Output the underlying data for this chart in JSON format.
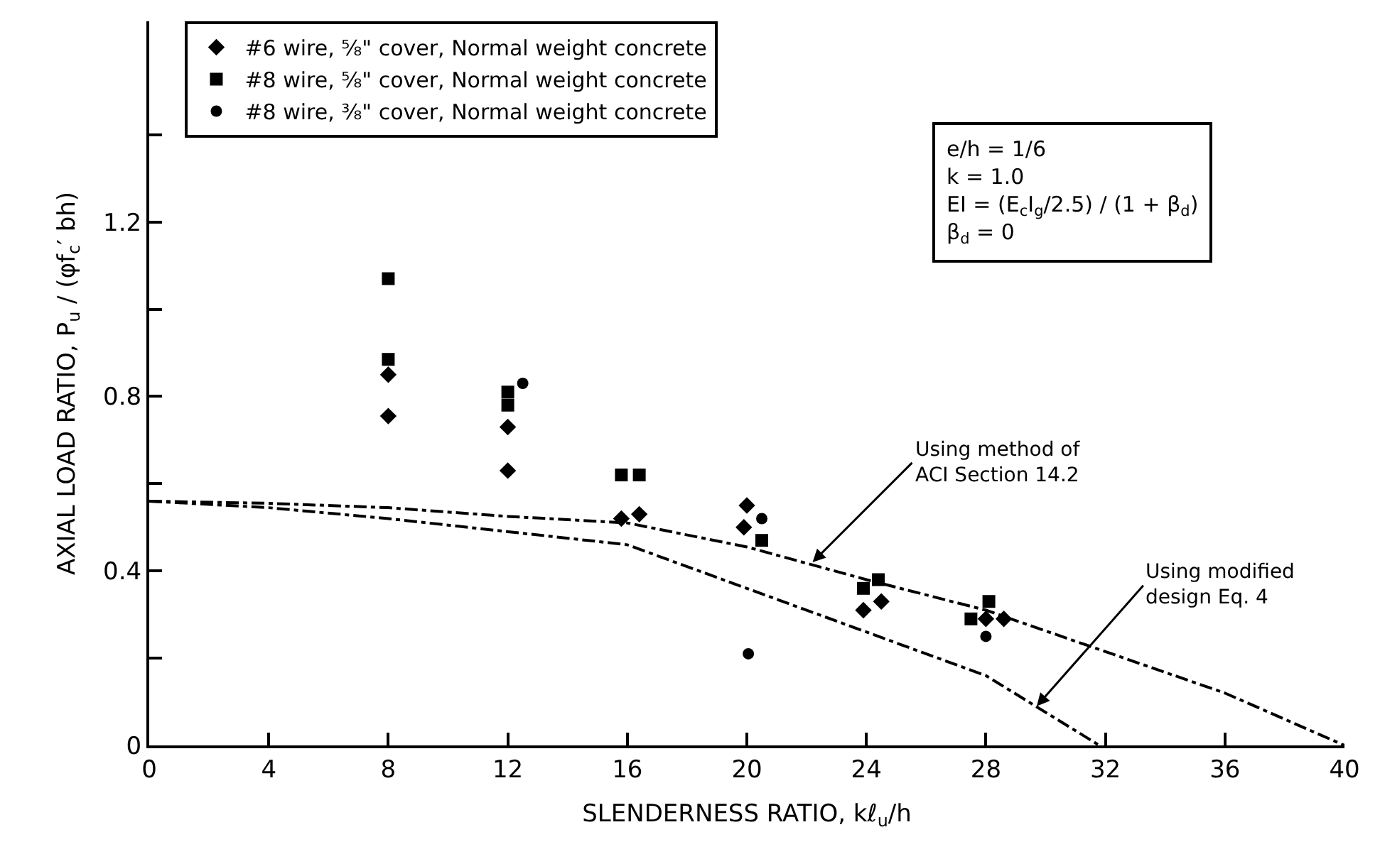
{
  "chart_data": {
    "type": "scatter",
    "xlabel": "SLENDERNESS RATIO, kℓ$_{u}$/h",
    "ylabel": "AXIAL LOAD RATIO, P$_{u}$ / (φf$_{c}$′ bh)",
    "xlim": [
      0,
      40
    ],
    "xticks": [
      0,
      4,
      8,
      12,
      16,
      20,
      24,
      28,
      32,
      36,
      40
    ],
    "ylim": [
      0,
      1.66
    ],
    "yticks": [
      0,
      {
        "value": 0.2,
        "label": null
      },
      0.4,
      {
        "value": 0.6,
        "label": null
      },
      0.8,
      {
        "value": 1.0,
        "label": null
      },
      1.2,
      {
        "value": 1.4,
        "label": null
      }
    ],
    "legend": "top left",
    "series": [
      {
        "name": "#6 wire, ⁵⁄₈\" cover, Normal weight concrete",
        "color": "#000000",
        "marker": "diamond",
        "x": [
          8,
          8,
          12,
          12,
          15.8,
          16.4,
          20,
          19.9,
          23.9,
          24.5,
          28,
          28.6
        ],
        "values": [
          0.85,
          0.755,
          0.73,
          0.63,
          0.52,
          0.53,
          0.55,
          0.5,
          0.31,
          0.33,
          0.29,
          0.29
        ]
      },
      {
        "name": "#8 wire, ⁵⁄₈\" cover, Normal weight concrete",
        "color": "#000000",
        "marker": "square",
        "x": [
          8,
          8,
          12,
          12,
          15.8,
          16.4,
          20.5,
          23.9,
          24.4,
          28.1,
          27.5
        ],
        "values": [
          1.07,
          0.885,
          0.81,
          0.78,
          0.62,
          0.62,
          0.47,
          0.36,
          0.38,
          0.33,
          0.29
        ]
      },
      {
        "name": "#8 wire, ³⁄₈\" cover, Normal weight concrete",
        "color": "#000000",
        "marker": "circle",
        "x": [
          12.5,
          20.5,
          20.05,
          28
        ],
        "values": [
          0.83,
          0.52,
          0.21,
          0.25
        ]
      },
      {
        "type": "line",
        "color": "#000000",
        "marker": "none",
        "line_style": "dashed",
        "x": [
          0,
          4,
          8,
          12,
          16,
          20,
          24,
          28,
          32,
          36,
          40
        ],
        "values": [
          0.56,
          0.555,
          0.545,
          0.525,
          0.51,
          0.455,
          0.38,
          0.31,
          0.215,
          0.12,
          0
        ]
      },
      {
        "type": "line",
        "color": "#000000",
        "marker": "none",
        "line_style": "dashed",
        "x": [
          0,
          4,
          8,
          12,
          16,
          20,
          24,
          28,
          31.8
        ],
        "values": [
          0.56,
          0.545,
          0.52,
          0.49,
          0.46,
          0.36,
          0.26,
          0.16,
          0
        ]
      }
    ],
    "annotations": [
      {
        "text": "Using method of\nACI Section 14.2",
        "x": 22.2,
        "y": 0.42
      },
      {
        "text": "Using modified\ndesign Eq. 4",
        "x": 29.7,
        "y": 0.09
      },
      "e/h = 1/6",
      "k = 1.0",
      "EI = (E$_{c}$I$_{g}$/2.5) / (1 + β$_{d}$)",
      "β$_{d}$ = 0"
    ]
  }
}
